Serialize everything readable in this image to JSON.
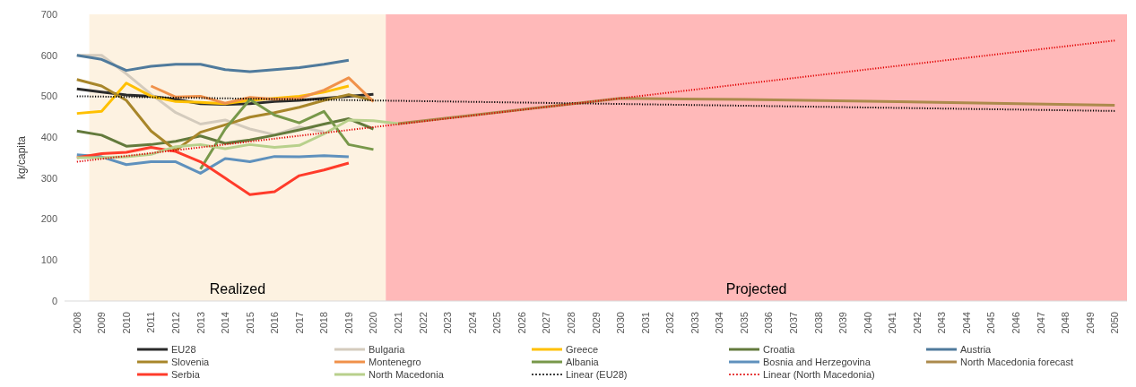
{
  "chart_data": {
    "type": "line",
    "ylabel": "kg/capita",
    "xlim": [
      2007.5,
      2050.5
    ],
    "xticks": [
      2008,
      2009,
      2010,
      2011,
      2012,
      2013,
      2014,
      2015,
      2016,
      2017,
      2018,
      2019,
      2020,
      2021,
      2022,
      2023,
      2024,
      2025,
      2026,
      2027,
      2028,
      2029,
      2030,
      2031,
      2032,
      2033,
      2034,
      2035,
      2036,
      2037,
      2038,
      2039,
      2040,
      2041,
      2042,
      2043,
      2044,
      2045,
      2046,
      2047,
      2048,
      2049,
      2050
    ],
    "ylim": [
      0,
      700
    ],
    "yticks": [
      0,
      100,
      200,
      300,
      400,
      500,
      600,
      700
    ],
    "grid": false,
    "legend": "bottom",
    "marker": "none",
    "bands": [
      {
        "axis": "x",
        "from": 2008.5,
        "to": 2020.5,
        "label": "Realized",
        "color": "#fdf2e1"
      },
      {
        "axis": "x",
        "from": 2020.5,
        "to": 2050.5,
        "label": "Projected",
        "color": "#ffb9b9"
      }
    ],
    "series": [
      {
        "name": "EU28",
        "color": "#2b2b2b",
        "x": [
          2008,
          2009,
          2010,
          2011,
          2012,
          2013,
          2014,
          2015,
          2016,
          2017,
          2018,
          2019,
          2020
        ],
        "values": [
          518,
          510,
          503,
          500,
          492,
          482,
          480,
          482,
          487,
          490,
          495,
          500,
          505
        ]
      },
      {
        "name": "Bulgaria",
        "color": "#d4cbbd",
        "x": [
          2008,
          2009,
          2010,
          2011,
          2012,
          2013,
          2014,
          2015,
          2016,
          2017,
          2018
        ],
        "values": [
          600,
          600,
          555,
          505,
          460,
          432,
          442,
          420,
          406,
          425,
          413
        ]
      },
      {
        "name": "Greece",
        "color": "#ffc000",
        "x": [
          2008,
          2009,
          2010,
          2011,
          2012,
          2013,
          2014,
          2015,
          2016,
          2017,
          2018,
          2019
        ],
        "values": [
          458,
          463,
          532,
          500,
          487,
          485,
          482,
          490,
          495,
          500,
          510,
          525
        ]
      },
      {
        "name": "Croatia",
        "color": "#637a3c",
        "x": [
          2008,
          2009,
          2010,
          2011,
          2012,
          2013,
          2014,
          2015,
          2016,
          2017,
          2018,
          2019,
          2020
        ],
        "values": [
          415,
          405,
          378,
          382,
          390,
          403,
          385,
          393,
          405,
          418,
          432,
          445,
          420
        ]
      },
      {
        "name": "Austria",
        "color": "#4f7a9c",
        "x": [
          2008,
          2009,
          2010,
          2011,
          2012,
          2013,
          2014,
          2015,
          2016,
          2017,
          2018,
          2019
        ],
        "values": [
          600,
          590,
          563,
          573,
          578,
          578,
          565,
          560,
          565,
          570,
          578,
          588
        ]
      },
      {
        "name": "Slovenia",
        "color": "#a8862a",
        "x": [
          2008,
          2009,
          2010,
          2011,
          2012,
          2013,
          2014,
          2015,
          2016,
          2017,
          2018,
          2019,
          2020
        ],
        "values": [
          541,
          525,
          490,
          415,
          368,
          412,
          430,
          449,
          460,
          473,
          490,
          504,
          490
        ]
      },
      {
        "name": "Montenegro",
        "color": "#f0914a",
        "x": [
          2011,
          2012,
          2013,
          2014,
          2015,
          2016,
          2017,
          2018,
          2019,
          2020
        ],
        "values": [
          525,
          498,
          500,
          483,
          497,
          493,
          495,
          515,
          545,
          487
        ]
      },
      {
        "name": "Albania",
        "color": "#78984a",
        "x": [
          2013,
          2014,
          2015,
          2016,
          2017,
          2018,
          2019,
          2020
        ],
        "values": [
          322,
          420,
          492,
          454,
          435,
          463,
          382,
          370
        ]
      },
      {
        "name": "Bosnia and Herzegovina",
        "color": "#5f91bd",
        "x": [
          2008,
          2009,
          2010,
          2011,
          2012,
          2013,
          2014,
          2015,
          2016,
          2017,
          2018,
          2019
        ],
        "values": [
          357,
          352,
          333,
          340,
          340,
          312,
          348,
          340,
          353,
          352,
          355,
          352
        ]
      },
      {
        "name": "North Macedonia forecast",
        "color": "#ac8a4c",
        "x": [
          2021,
          2030,
          2035,
          2040,
          2045,
          2050
        ],
        "values": [
          433,
          495,
          492,
          488,
          483,
          478
        ]
      },
      {
        "name": "Serbia",
        "color": "#ff3b2a",
        "x": [
          2008,
          2009,
          2010,
          2011,
          2012,
          2013,
          2014,
          2015,
          2016,
          2017,
          2018,
          2019
        ],
        "values": [
          350,
          360,
          363,
          375,
          365,
          340,
          300,
          260,
          267,
          306,
          320,
          337
        ]
      },
      {
        "name": "North Macedonia",
        "color": "#b8d08c",
        "x": [
          2008,
          2009,
          2010,
          2011,
          2012,
          2013,
          2014,
          2015,
          2016,
          2017,
          2018,
          2019,
          2020,
          2021
        ],
        "values": [
          350,
          350,
          352,
          358,
          377,
          382,
          372,
          382,
          375,
          380,
          408,
          442,
          440,
          433
        ]
      },
      {
        "name": "Linear (EU28)",
        "color": "#000000",
        "line_style": "dotted",
        "x": [
          2008,
          2050
        ],
        "values": [
          500,
          464
        ]
      },
      {
        "name": "Linear (North Macedonia)",
        "color": "#e00000",
        "line_style": "dotted",
        "x": [
          2008,
          2050
        ],
        "values": [
          340,
          636
        ]
      }
    ]
  }
}
